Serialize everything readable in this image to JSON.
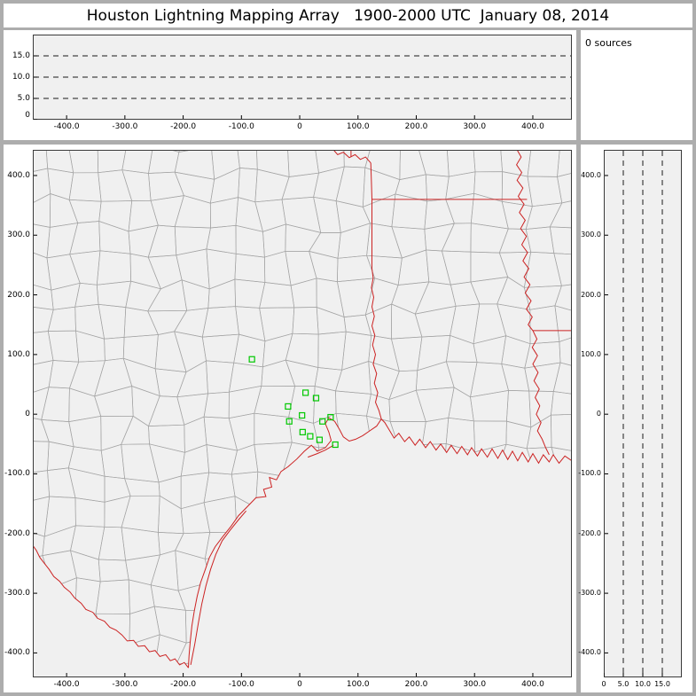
{
  "title": "Houston Lightning Mapping Array   1900-2000 UTC  January 08, 2014",
  "sources_panel": {
    "label": "0 sources"
  },
  "colors": {
    "window_frame": "#adadad",
    "panel_background": "#f0f0f0",
    "plot_border": "#3a3a3a",
    "county_line": "#a6a6a6",
    "state_border": "#cc2222",
    "station_marker": "#00c800",
    "dashed_line": "#1a1a1a",
    "text": "#000000"
  },
  "chart_data": [
    {
      "id": "altitude_vs_ew",
      "type": "scatter",
      "title": "",
      "xlim": [
        -458,
        467
      ],
      "ylim": [
        0,
        20
      ],
      "grid": "dashed-horizontal",
      "x_ticks": [
        {
          "v": -400,
          "label": "-400.0"
        },
        {
          "v": -300,
          "label": "-300.0"
        },
        {
          "v": -200,
          "label": "-200.0"
        },
        {
          "v": -100,
          "label": "-100.0"
        },
        {
          "v": 0,
          "label": "0"
        },
        {
          "v": 100,
          "label": "100.0"
        },
        {
          "v": 200,
          "label": "200.0"
        },
        {
          "v": 300,
          "label": "300.0"
        },
        {
          "v": 400,
          "label": "400.0"
        }
      ],
      "y_ticks": [
        {
          "v": 15,
          "label": "15.0"
        },
        {
          "v": 10,
          "label": "10.0"
        },
        {
          "v": 5,
          "label": "5.0"
        },
        {
          "v": 0,
          "label": "0"
        }
      ],
      "dashed_hlines": [
        5,
        10,
        15
      ],
      "points": []
    },
    {
      "id": "map",
      "type": "scatter",
      "title": "",
      "xlim": [
        -458,
        467
      ],
      "ylim": [
        -441,
        443
      ],
      "x_ticks": [
        {
          "v": -400,
          "label": "-400.0"
        },
        {
          "v": -300,
          "label": "-300.0"
        },
        {
          "v": -200,
          "label": "-200.0"
        },
        {
          "v": -100,
          "label": "-100.0"
        },
        {
          "v": 0,
          "label": "0"
        },
        {
          "v": 100,
          "label": "100.0"
        },
        {
          "v": 200,
          "label": "200.0"
        },
        {
          "v": 300,
          "label": "300.0"
        },
        {
          "v": 400,
          "label": "400.0"
        }
      ],
      "y_ticks": [
        {
          "v": 400,
          "label": "400.0"
        },
        {
          "v": 300,
          "label": "300.0"
        },
        {
          "v": 200,
          "label": "200.0"
        },
        {
          "v": 100,
          "label": "100.0"
        },
        {
          "v": 0,
          "label": "0"
        },
        {
          "v": -100,
          "label": "-100.0"
        },
        {
          "v": -200,
          "label": "-200.0"
        },
        {
          "v": -300,
          "label": "-300.0"
        },
        {
          "v": -400,
          "label": "-400.0"
        }
      ],
      "stations": [
        [
          -82,
          92
        ],
        [
          10,
          36
        ],
        [
          28,
          27
        ],
        [
          -20,
          13
        ],
        [
          4,
          -2
        ],
        [
          -18,
          -12
        ],
        [
          39,
          -12
        ],
        [
          53,
          -5
        ],
        [
          5,
          -30
        ],
        [
          18,
          -37
        ],
        [
          34,
          -43
        ],
        [
          61,
          -51
        ]
      ],
      "lightning_points": [],
      "map_features": {
        "coastline": [
          [
            467,
            -78
          ],
          [
            455,
            -70
          ],
          [
            445,
            -82
          ],
          [
            435,
            -68
          ],
          [
            428,
            -80
          ],
          [
            418,
            -68
          ],
          [
            410,
            -82
          ],
          [
            400,
            -66
          ],
          [
            392,
            -80
          ],
          [
            382,
            -64
          ],
          [
            374,
            -78
          ],
          [
            365,
            -62
          ],
          [
            357,
            -76
          ],
          [
            348,
            -60
          ],
          [
            340,
            -74
          ],
          [
            330,
            -58
          ],
          [
            322,
            -72
          ],
          [
            312,
            -58
          ],
          [
            305,
            -70
          ],
          [
            295,
            -56
          ],
          [
            288,
            -68
          ],
          [
            278,
            -54
          ],
          [
            270,
            -66
          ],
          [
            260,
            -52
          ],
          [
            252,
            -64
          ],
          [
            242,
            -50
          ],
          [
            234,
            -60
          ],
          [
            224,
            -46
          ],
          [
            216,
            -56
          ],
          [
            206,
            -42
          ],
          [
            198,
            -52
          ],
          [
            188,
            -38
          ],
          [
            180,
            -46
          ],
          [
            170,
            -32
          ],
          [
            162,
            -40
          ],
          [
            152,
            -24
          ],
          [
            146,
            -14
          ],
          [
            140,
            -8
          ],
          [
            132,
            -20
          ],
          [
            120,
            -28
          ],
          [
            108,
            -36
          ],
          [
            96,
            -42
          ],
          [
            85,
            -45
          ],
          [
            75,
            -38
          ],
          [
            68,
            -25
          ],
          [
            60,
            -12
          ],
          [
            50,
            -6
          ],
          [
            44,
            -16
          ],
          [
            50,
            -30
          ],
          [
            54,
            -44
          ],
          [
            44,
            -56
          ],
          [
            30,
            -62
          ],
          [
            20,
            -52
          ],
          [
            8,
            -62
          ],
          [
            -5,
            -75
          ],
          [
            -20,
            -88
          ],
          [
            -32,
            -96
          ],
          [
            -40,
            -110
          ],
          [
            -52,
            -106
          ],
          [
            -48,
            -122
          ],
          [
            -62,
            -126
          ],
          [
            -58,
            -138
          ],
          [
            -75,
            -140
          ],
          [
            -90,
            -155
          ],
          [
            -105,
            -170
          ],
          [
            -118,
            -188
          ],
          [
            -132,
            -205
          ],
          [
            -145,
            -222
          ],
          [
            -155,
            -240
          ],
          [
            -162,
            -260
          ],
          [
            -170,
            -282
          ],
          [
            -176,
            -305
          ],
          [
            -181,
            -330
          ],
          [
            -185,
            -355
          ],
          [
            -188,
            -382
          ],
          [
            -190,
            -405
          ],
          [
            -191,
            -425
          ]
        ],
        "rio_grande": [
          [
            -191,
            -425
          ],
          [
            -198,
            -416
          ],
          [
            -206,
            -420
          ],
          [
            -214,
            -410
          ],
          [
            -222,
            -413
          ],
          [
            -230,
            -403
          ],
          [
            -240,
            -406
          ],
          [
            -248,
            -396
          ],
          [
            -258,
            -398
          ],
          [
            -266,
            -388
          ],
          [
            -277,
            -389
          ],
          [
            -285,
            -379
          ],
          [
            -296,
            -380
          ],
          [
            -305,
            -370
          ],
          [
            -315,
            -362
          ],
          [
            -326,
            -357
          ],
          [
            -335,
            -347
          ],
          [
            -347,
            -342
          ],
          [
            -355,
            -332
          ],
          [
            -367,
            -327
          ],
          [
            -375,
            -317
          ],
          [
            -386,
            -308
          ],
          [
            -394,
            -298
          ],
          [
            -404,
            -290
          ],
          [
            -412,
            -280
          ],
          [
            -422,
            -272
          ],
          [
            -430,
            -260
          ],
          [
            -438,
            -250
          ],
          [
            -446,
            -240
          ],
          [
            -452,
            -228
          ],
          [
            -458,
            -220
          ]
        ],
        "barrier_islands": [
          [
            [
              -187,
              -420
            ],
            [
              -180,
              -385
            ],
            [
              -174,
              -350
            ],
            [
              -168,
              -318
            ],
            [
              -161,
              -288
            ],
            [
              -153,
              -260
            ],
            [
              -144,
              -235
            ],
            [
              -133,
              -212
            ],
            [
              -120,
              -195
            ],
            [
              -106,
              -178
            ],
            [
              -92,
              -162
            ]
          ],
          [
            [
              14,
              -72
            ],
            [
              30,
              -66
            ],
            [
              44,
              -60
            ],
            [
              58,
              -52
            ]
          ]
        ],
        "sabine_tx_la_border": [
          [
            140,
            -8
          ],
          [
            136,
            6
          ],
          [
            130,
            20
          ],
          [
            134,
            36
          ],
          [
            128,
            52
          ],
          [
            132,
            68
          ],
          [
            126,
            84
          ],
          [
            130,
            100
          ],
          [
            125,
            116
          ],
          [
            129,
            132
          ],
          [
            124,
            148
          ],
          [
            128,
            164
          ],
          [
            124,
            180
          ],
          [
            127,
            196
          ],
          [
            123,
            212
          ],
          [
            126,
            228
          ],
          [
            124,
            244
          ],
          [
            124,
            300
          ],
          [
            124,
            360
          ],
          [
            123,
            390
          ],
          [
            122,
            421
          ]
        ],
        "red_river": [
          [
            58,
            443
          ],
          [
            65,
            435
          ],
          [
            75,
            439
          ],
          [
            85,
            430
          ],
          [
            95,
            435
          ],
          [
            104,
            427
          ],
          [
            113,
            431
          ],
          [
            122,
            421
          ]
        ],
        "ok_ar_border": [
          [
            88,
            431
          ],
          [
            88,
            443
          ]
        ],
        "ar_la_border": [
          [
            124,
            360
          ],
          [
            390,
            360
          ]
        ],
        "mississippi_river": [
          [
            373,
            443
          ],
          [
            380,
            431
          ],
          [
            372,
            418
          ],
          [
            381,
            405
          ],
          [
            373,
            392
          ],
          [
            383,
            379
          ],
          [
            375,
            365
          ],
          [
            385,
            352
          ],
          [
            377,
            338
          ],
          [
            387,
            325
          ],
          [
            379,
            311
          ],
          [
            389,
            298
          ],
          [
            381,
            284
          ],
          [
            391,
            271
          ],
          [
            383,
            257
          ],
          [
            393,
            244
          ],
          [
            385,
            230
          ],
          [
            395,
            217
          ],
          [
            387,
            203
          ],
          [
            397,
            190
          ],
          [
            389,
            176
          ],
          [
            399,
            163
          ],
          [
            392,
            150
          ],
          [
            400,
            140
          ],
          [
            407,
            126
          ],
          [
            399,
            112
          ],
          [
            408,
            98
          ],
          [
            400,
            84
          ],
          [
            409,
            70
          ],
          [
            402,
            56
          ],
          [
            411,
            42
          ],
          [
            404,
            28
          ],
          [
            412,
            14
          ],
          [
            406,
            0
          ],
          [
            414,
            -14
          ],
          [
            408,
            -28
          ],
          [
            416,
            -42
          ],
          [
            422,
            -56
          ],
          [
            428,
            -68
          ]
        ],
        "la_ms_border_31n": [
          [
            400,
            140
          ],
          [
            467,
            140
          ]
        ]
      }
    },
    {
      "id": "altitude_vs_ns",
      "type": "scatter",
      "title": "",
      "xlim": [
        0,
        20
      ],
      "ylim": [
        -441,
        443
      ],
      "grid": "dashed-vertical",
      "x_ticks": [
        {
          "v": 0,
          "label": "0"
        },
        {
          "v": 5,
          "label": "5.0"
        },
        {
          "v": 10,
          "label": "10.0"
        },
        {
          "v": 15,
          "label": "15.0"
        }
      ],
      "y_ticks": [
        {
          "v": 400,
          "label": "400.0"
        },
        {
          "v": 300,
          "label": "300.0"
        },
        {
          "v": 200,
          "label": "200.0"
        },
        {
          "v": 100,
          "label": "100.0"
        },
        {
          "v": 0,
          "label": "0"
        },
        {
          "v": -100,
          "label": "-100.0"
        },
        {
          "v": -200,
          "label": "-200.0"
        },
        {
          "v": -300,
          "label": "-300.0"
        },
        {
          "v": -400,
          "label": "-400.0"
        }
      ],
      "dashed_vlines": [
        5,
        10,
        15
      ],
      "points": []
    }
  ]
}
